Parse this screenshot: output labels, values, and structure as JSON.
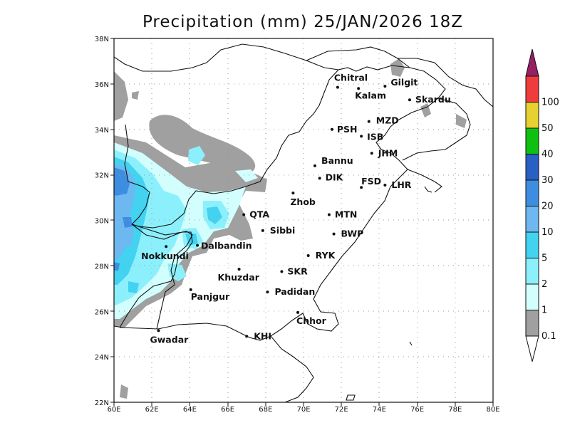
{
  "title": "Precipitation (mm) 25/JAN/2026 18Z",
  "map": {
    "lon_labels": [
      "60E",
      "62E",
      "64E",
      "66E",
      "68E",
      "70E",
      "72E",
      "74E",
      "76E",
      "78E",
      "80E"
    ],
    "lat_labels": [
      "38N",
      "36N",
      "34N",
      "32N",
      "30N",
      "28N",
      "26N",
      "24N",
      "22N"
    ],
    "cities": [
      {
        "name": "Chitral",
        "lon": 71.8,
        "lat": 35.85
      },
      {
        "name": "Gilgit",
        "lon": 74.3,
        "lat": 35.9
      },
      {
        "name": "Kalam",
        "lon": 72.9,
        "lat": 35.8
      },
      {
        "name": "Skardu",
        "lon": 75.6,
        "lat": 35.3
      },
      {
        "name": "MZD",
        "lon": 73.45,
        "lat": 34.35
      },
      {
        "name": "PSH",
        "lon": 71.5,
        "lat": 34.0
      },
      {
        "name": "ISB",
        "lon": 73.05,
        "lat": 33.7
      },
      {
        "name": "JHM",
        "lon": 73.6,
        "lat": 32.95
      },
      {
        "name": "Bannu",
        "lon": 70.6,
        "lat": 32.4
      },
      {
        "name": "DIK",
        "lon": 70.85,
        "lat": 31.85
      },
      {
        "name": "FSD",
        "lon": 73.05,
        "lat": 31.45
      },
      {
        "name": "LHR",
        "lon": 74.3,
        "lat": 31.55
      },
      {
        "name": "Zhob",
        "lon": 69.45,
        "lat": 31.2
      },
      {
        "name": "QTA",
        "lon": 66.85,
        "lat": 30.25
      },
      {
        "name": "MTN",
        "lon": 71.35,
        "lat": 30.25
      },
      {
        "name": "Sibbi",
        "lon": 67.85,
        "lat": 29.55
      },
      {
        "name": "BWP",
        "lon": 71.6,
        "lat": 29.4
      },
      {
        "name": "Dalbandin",
        "lon": 64.4,
        "lat": 28.9
      },
      {
        "name": "Nokkundi",
        "lon": 62.75,
        "lat": 28.85
      },
      {
        "name": "RYK",
        "lon": 70.25,
        "lat": 28.45
      },
      {
        "name": "Khuzdar",
        "lon": 66.6,
        "lat": 27.85
      },
      {
        "name": "SKR",
        "lon": 68.85,
        "lat": 27.75
      },
      {
        "name": "Panjgur",
        "lon": 64.05,
        "lat": 26.95
      },
      {
        "name": "Padidan",
        "lon": 68.1,
        "lat": 26.85
      },
      {
        "name": "Chhor",
        "lon": 69.7,
        "lat": 25.95
      },
      {
        "name": "KHI",
        "lon": 67.0,
        "lat": 24.9
      },
      {
        "name": "Gwadar",
        "lon": 62.35,
        "lat": 25.15
      }
    ]
  },
  "colorbar": {
    "levels": [
      {
        "label": "0.1",
        "color": "#a0a0a0"
      },
      {
        "label": "1",
        "color": "#d2fffe"
      },
      {
        "label": "2",
        "color": "#8cf0fc"
      },
      {
        "label": "5",
        "color": "#43d2f0"
      },
      {
        "label": "10",
        "color": "#6db8f0"
      },
      {
        "label": "20",
        "color": "#3d8ee0"
      },
      {
        "label": "30",
        "color": "#2960c4"
      },
      {
        "label": "40",
        "color": "#10c010"
      },
      {
        "label": "50",
        "color": "#e6d130"
      },
      {
        "label": "100",
        "color": "#f28015"
      }
    ],
    "top_color": "#f03c3c",
    "over_color": "#962063",
    "under_color": "#ffffff"
  }
}
